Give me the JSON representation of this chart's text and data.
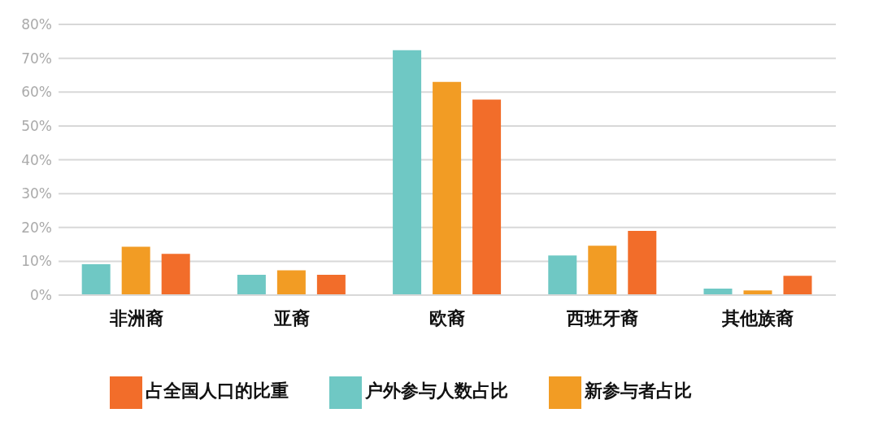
{
  "chart_data": {
    "type": "bar",
    "categories": [
      "非洲裔",
      "亚裔",
      "欧裔",
      "西班牙裔",
      "其他族裔"
    ],
    "series": [
      {
        "name": "户外参与人数占比",
        "color": "#6fc8c4",
        "values": [
          9.1,
          6.0,
          72.4,
          11.7,
          1.9
        ]
      },
      {
        "name": "新参与者占比",
        "color": "#f29c24",
        "values": [
          14.3,
          7.3,
          63.0,
          14.6,
          1.4
        ]
      },
      {
        "name": "占全国人口的比重",
        "color": "#f26d2a",
        "values": [
          12.2,
          6.0,
          57.8,
          19.0,
          5.7
        ]
      }
    ],
    "ylim": [
      0,
      80
    ],
    "yticks": [
      {
        "value": 0,
        "label": "0%"
      },
      {
        "value": 10,
        "label": "10%"
      },
      {
        "value": 20,
        "label": "20%"
      },
      {
        "value": 30,
        "label": "30%"
      },
      {
        "value": 40,
        "label": "40%"
      },
      {
        "value": 50,
        "label": "50%"
      },
      {
        "value": 60,
        "label": "60%"
      },
      {
        "value": 70,
        "label": "70%"
      },
      {
        "value": 80,
        "label": "80%"
      }
    ],
    "grid": "y",
    "legend": "bottom"
  }
}
